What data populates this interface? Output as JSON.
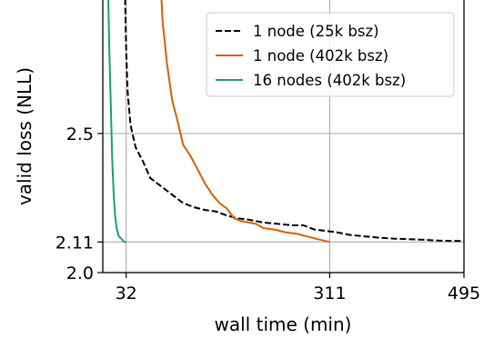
{
  "chart_data": {
    "type": "line",
    "title": "",
    "xlabel": "wall time (min)",
    "ylabel": "valid loss (NLL)",
    "xlim": [
      0,
      495
    ],
    "ylim": [
      2.0,
      2.98
    ],
    "xticks": [
      32,
      311,
      495
    ],
    "yticks": [
      2.0,
      2.11,
      2.5
    ],
    "ytick_labels": [
      "2.0",
      "2.11",
      "2.5"
    ],
    "grid": true,
    "legend_position": "top-right",
    "series": [
      {
        "name": "1 node (25k bsz)",
        "color": "#000000",
        "dash": "dashed",
        "points": [
          [
            30,
            3.05
          ],
          [
            32,
            2.8
          ],
          [
            34,
            2.65
          ],
          [
            38,
            2.53
          ],
          [
            45,
            2.45
          ],
          [
            55,
            2.4
          ],
          [
            65,
            2.34
          ],
          [
            80,
            2.31
          ],
          [
            95,
            2.28
          ],
          [
            110,
            2.25
          ],
          [
            125,
            2.235
          ],
          [
            140,
            2.225
          ],
          [
            155,
            2.22
          ],
          [
            170,
            2.205
          ],
          [
            185,
            2.195
          ],
          [
            200,
            2.19
          ],
          [
            220,
            2.18
          ],
          [
            240,
            2.175
          ],
          [
            260,
            2.17
          ],
          [
            275,
            2.17
          ],
          [
            290,
            2.155
          ],
          [
            305,
            2.15
          ],
          [
            320,
            2.145
          ],
          [
            340,
            2.135
          ],
          [
            360,
            2.13
          ],
          [
            380,
            2.125
          ],
          [
            400,
            2.122
          ],
          [
            420,
            2.12
          ],
          [
            440,
            2.118
          ],
          [
            460,
            2.115
          ],
          [
            480,
            2.114
          ],
          [
            495,
            2.113
          ]
        ]
      },
      {
        "name": "1 node (402k bsz)",
        "color": "#d95f02",
        "dash": "solid",
        "points": [
          [
            79,
            3.05
          ],
          [
            82,
            2.9
          ],
          [
            88,
            2.75
          ],
          [
            95,
            2.62
          ],
          [
            102,
            2.55
          ],
          [
            110,
            2.46
          ],
          [
            120,
            2.42
          ],
          [
            130,
            2.37
          ],
          [
            140,
            2.32
          ],
          [
            150,
            2.28
          ],
          [
            160,
            2.25
          ],
          [
            170,
            2.23
          ],
          [
            180,
            2.195
          ],
          [
            190,
            2.185
          ],
          [
            200,
            2.18
          ],
          [
            210,
            2.175
          ],
          [
            220,
            2.16
          ],
          [
            235,
            2.155
          ],
          [
            250,
            2.145
          ],
          [
            265,
            2.14
          ],
          [
            280,
            2.13
          ],
          [
            295,
            2.12
          ],
          [
            311,
            2.11
          ]
        ]
      },
      {
        "name": "16 nodes (402k bsz)",
        "color": "#1b9e77",
        "dash": "solid",
        "points": [
          [
            7,
            3.05
          ],
          [
            9,
            2.8
          ],
          [
            11,
            2.6
          ],
          [
            13,
            2.4
          ],
          [
            15,
            2.28
          ],
          [
            17,
            2.2
          ],
          [
            19,
            2.16
          ],
          [
            22,
            2.13
          ],
          [
            26,
            2.12
          ],
          [
            29,
            2.11
          ],
          [
            32,
            2.11
          ]
        ]
      }
    ]
  }
}
